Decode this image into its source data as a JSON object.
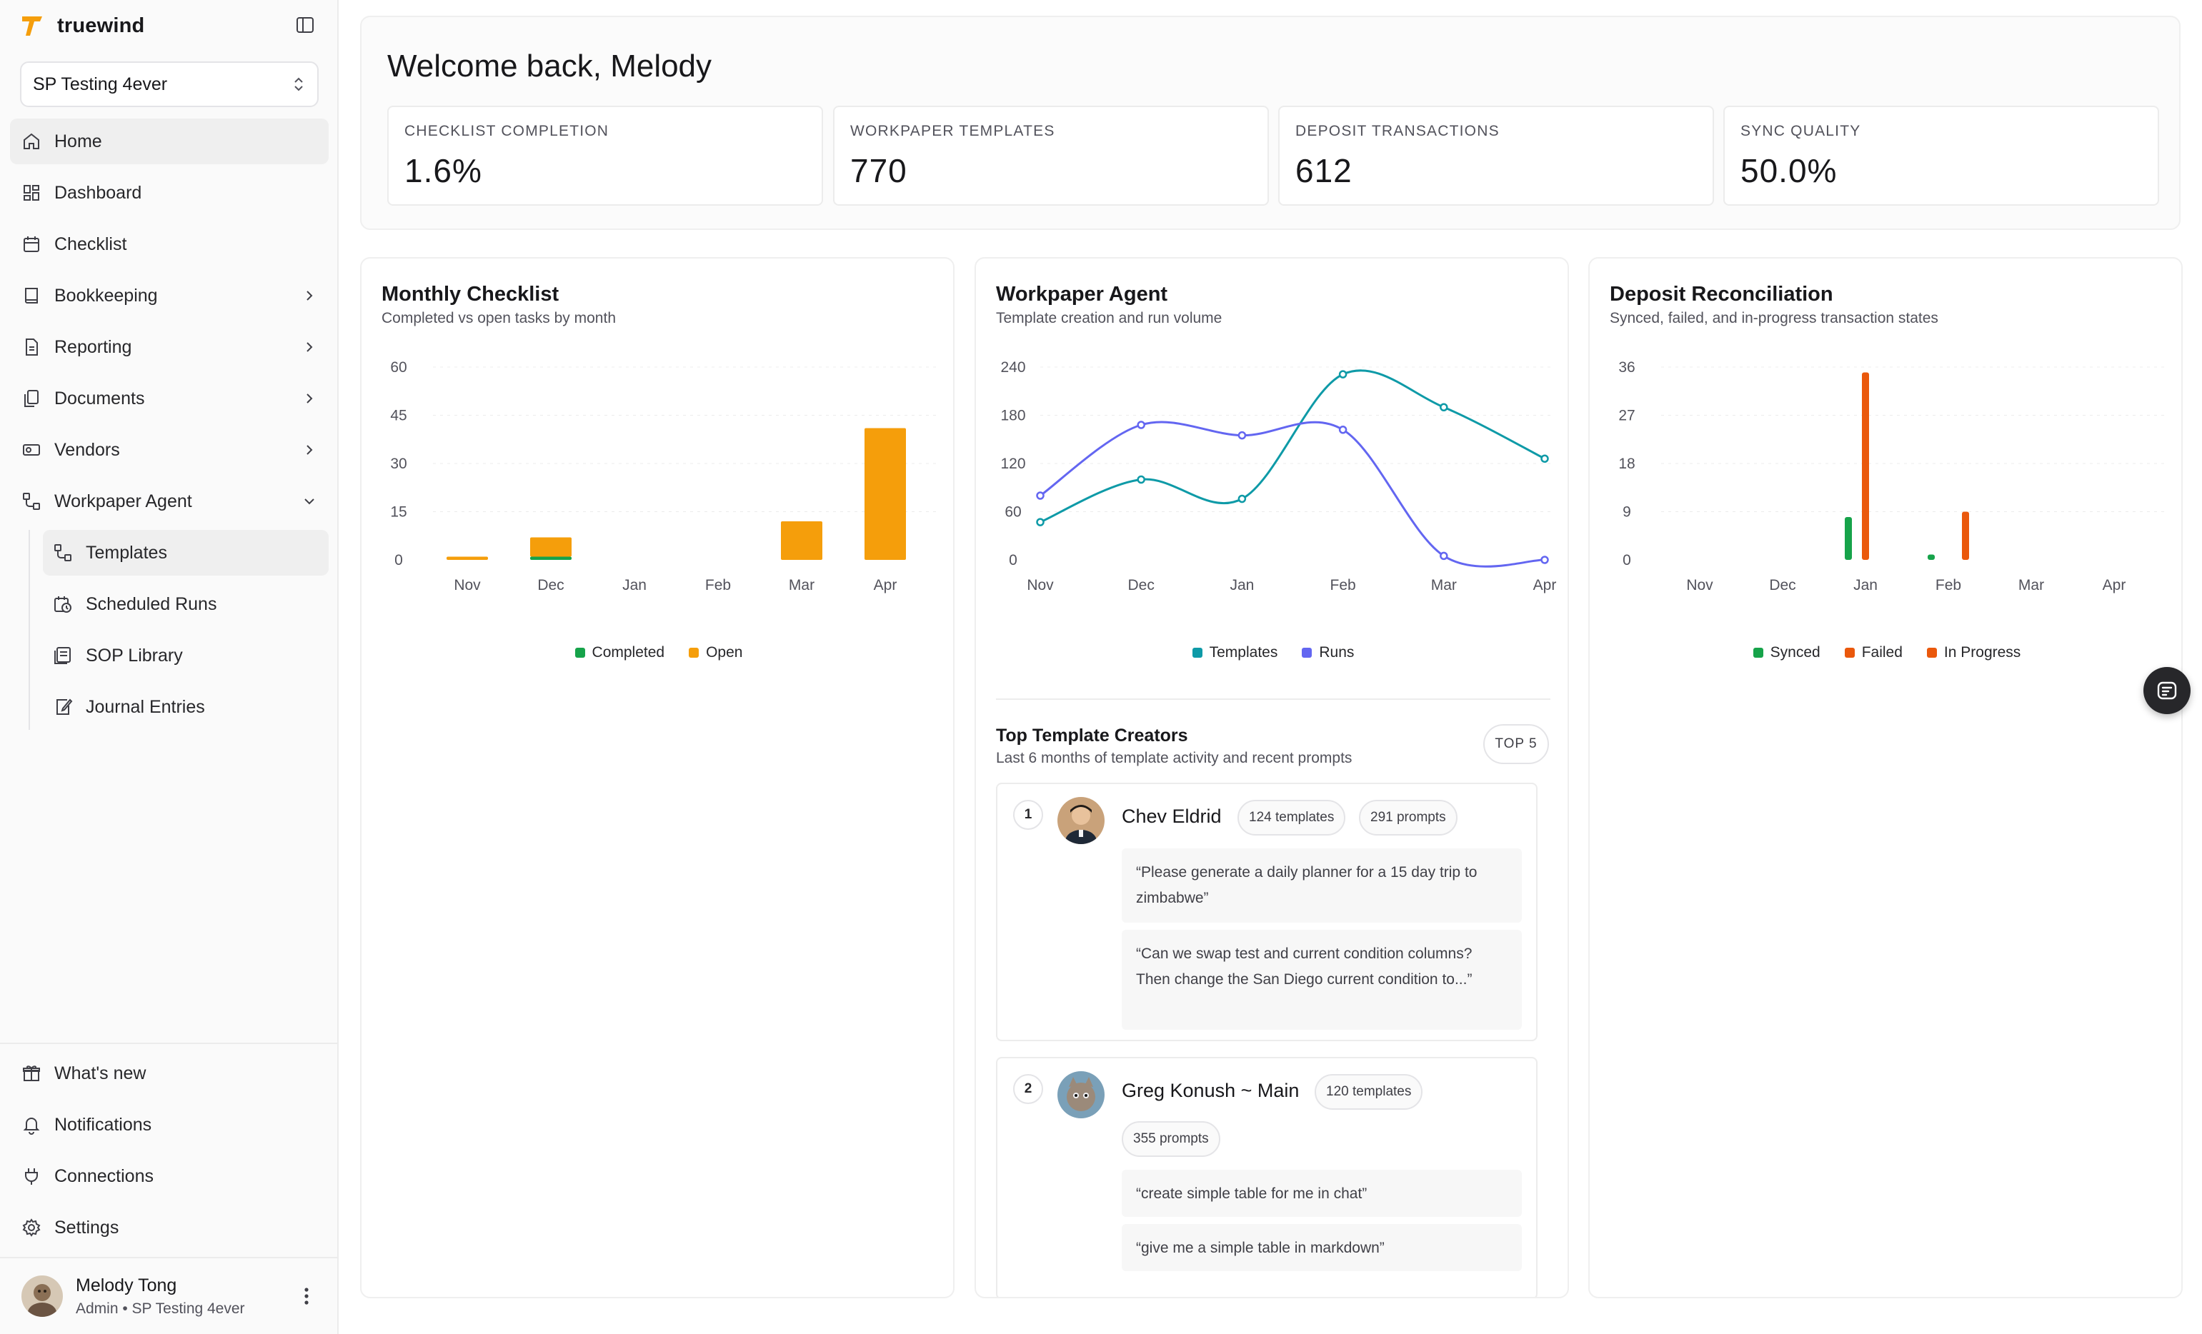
{
  "app": {
    "name": "truewind"
  },
  "workspace": {
    "name": "SP Testing 4ever"
  },
  "nav": {
    "home": "Home",
    "dashboard": "Dashboard",
    "checklist": "Checklist",
    "bookkeeping": "Bookkeeping",
    "reporting": "Reporting",
    "documents": "Documents",
    "vendors": "Vendors",
    "workpaper_agent": "Workpaper Agent",
    "templates": "Templates",
    "scheduled_runs": "Scheduled Runs",
    "sop_library": "SOP Library",
    "journal_entries": "Journal Entries"
  },
  "footer_nav": {
    "whats_new": "What's new",
    "notifications": "Notifications",
    "connections": "Connections",
    "settings": "Settings"
  },
  "user": {
    "name": "Melody Tong",
    "role": "Admin • SP Testing 4ever"
  },
  "welcome": {
    "title": "Welcome back, Melody"
  },
  "stats": [
    {
      "label": "CHECKLIST COMPLETION",
      "value": "1.6%"
    },
    {
      "label": "WORKPAPER TEMPLATES",
      "value": "770"
    },
    {
      "label": "DEPOSIT TRANSACTIONS",
      "value": "612"
    },
    {
      "label": "SYNC QUALITY",
      "value": "50.0%"
    }
  ],
  "cards": {
    "monthly": {
      "title": "Monthly Checklist",
      "subtitle": "Completed vs open tasks by month"
    },
    "workpaper": {
      "title": "Workpaper Agent",
      "subtitle": "Template creation and run volume"
    },
    "deposit": {
      "title": "Deposit Reconciliation",
      "subtitle": "Synced, failed, and in-progress transaction states"
    }
  },
  "colors": {
    "completed": "#16a34a",
    "open": "#f59e0b",
    "templates": "#0e9aa7",
    "runs": "#6366f1",
    "synced": "#16a34a",
    "failed": "#ea580c",
    "in_progress": "#ea580c",
    "brand": "#f59e0b"
  },
  "chart_data": [
    {
      "type": "bar",
      "title": "Monthly Checklist",
      "categories": [
        "Nov",
        "Dec",
        "Jan",
        "Feb",
        "Mar",
        "Apr"
      ],
      "stacked": true,
      "ylim": [
        0,
        60
      ],
      "yticks": [
        0,
        15,
        30,
        45,
        60
      ],
      "series": [
        {
          "name": "Completed",
          "values": [
            0,
            1,
            0,
            0,
            0,
            0
          ]
        },
        {
          "name": "Open",
          "values": [
            1,
            6,
            0,
            0,
            12,
            41
          ]
        }
      ],
      "legend": "bottom"
    },
    {
      "type": "line",
      "title": "Workpaper Agent",
      "categories": [
        "Nov",
        "Dec",
        "Jan",
        "Feb",
        "Mar",
        "Apr"
      ],
      "ylim": [
        0,
        240
      ],
      "yticks": [
        0,
        60,
        120,
        180,
        240
      ],
      "series": [
        {
          "name": "Templates",
          "values": [
            47,
            100,
            76,
            231,
            190,
            126
          ]
        },
        {
          "name": "Runs",
          "values": [
            80,
            168,
            155,
            162,
            5,
            0
          ]
        }
      ],
      "legend": "bottom"
    },
    {
      "type": "bar",
      "title": "Deposit Reconciliation",
      "categories": [
        "Nov",
        "Dec",
        "Jan",
        "Feb",
        "Mar",
        "Apr"
      ],
      "ylim": [
        0,
        36
      ],
      "yticks": [
        0,
        9,
        18,
        27,
        36
      ],
      "series": [
        {
          "name": "Synced",
          "values": [
            0,
            0,
            8,
            1,
            0,
            0
          ]
        },
        {
          "name": "Failed",
          "values": [
            0,
            0,
            35,
            0,
            0,
            0
          ]
        },
        {
          "name": "In Progress",
          "values": [
            0,
            0,
            0,
            9,
            0,
            0
          ]
        }
      ],
      "legend": "bottom"
    }
  ],
  "creators": {
    "title": "Top Template Creators",
    "subtitle": "Last 6 months of template activity and recent prompts",
    "badge": "TOP 5",
    "list": [
      {
        "rank": "1",
        "name": "Chev Eldrid",
        "templates": "124 templates",
        "prompts": "291 prompts",
        "recent": [
          "“Please generate a daily planner for a 15 day trip to zimbabwe”",
          "“Can we swap test and current condition columns? Then change the San Diego current condition to...”"
        ]
      },
      {
        "rank": "2",
        "name": "Greg Konush ~ Main",
        "templates": "120 templates",
        "prompts": "355 prompts",
        "recent": [
          "“create simple table for me in chat”",
          "“give me a simple table in markdown”"
        ]
      }
    ]
  }
}
